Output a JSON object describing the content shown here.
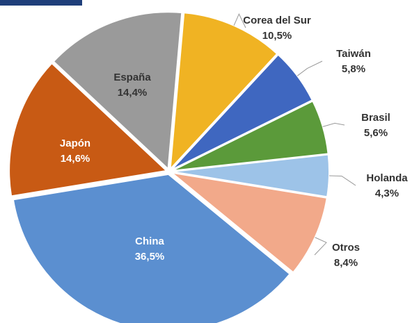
{
  "chart_data": {
    "type": "pie",
    "categories": [
      "Corea del Sur",
      "Taiwán",
      "Brasil",
      "Holanda",
      "Otros",
      "China",
      "Japón",
      "España"
    ],
    "values": [
      10.5,
      5.8,
      5.6,
      4.3,
      8.4,
      36.5,
      14.6,
      14.4
    ],
    "value_labels": [
      "10,5%",
      "5,8%",
      "5,6%",
      "4,3%",
      "8,4%",
      "36,5%",
      "14,6%",
      "14,4%"
    ],
    "colors": [
      "#f0b323",
      "#3f67c0",
      "#5b9a3a",
      "#9dc3e8",
      "#f2a98a",
      "#5b8fd0",
      "#c85a14",
      "#9a9a9a"
    ]
  }
}
